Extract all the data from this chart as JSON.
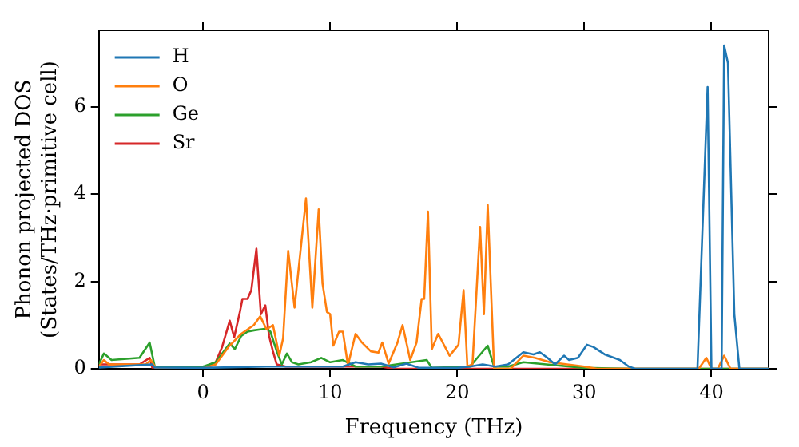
{
  "chart_data": {
    "type": "line",
    "xlabel": "Frequency (THz)",
    "ylabel": "Phonon projected DOS\n(States/THz·primitive cell)",
    "xlim": [
      -8.2,
      44.5
    ],
    "ylim": [
      0,
      7.75
    ],
    "xticks": [
      0,
      10,
      20,
      30,
      40
    ],
    "yticks": [
      0,
      2,
      4,
      6
    ],
    "grid": false,
    "legend": "top left",
    "marker": "none",
    "line_style": "solid",
    "series": [
      {
        "name": "H",
        "color": "#1f77b4",
        "x": [
          -8.2,
          -4,
          -3.8,
          0,
          5,
          8,
          11,
          12,
          13,
          14,
          15,
          16,
          17,
          20,
          21,
          22,
          23,
          24,
          25.2,
          26,
          26.5,
          27.1,
          27.7,
          28.4,
          28.8,
          29.5,
          30.2,
          30.7,
          31.6,
          32.8,
          33.5,
          34,
          38.9,
          39.7,
          40,
          40.4,
          40.8,
          41,
          41.3,
          41.8,
          42.2,
          44.5
        ],
        "values": [
          0.03,
          0.1,
          0.03,
          0.02,
          0.05,
          0.05,
          0.05,
          0.15,
          0.1,
          0.12,
          0.03,
          0.12,
          0.02,
          0.02,
          0.05,
          0.1,
          0.05,
          0.1,
          0.38,
          0.33,
          0.38,
          0.25,
          0.1,
          0.3,
          0.2,
          0.25,
          0.55,
          0.5,
          0.33,
          0.2,
          0.05,
          0,
          0,
          6.45,
          0,
          0,
          0,
          7.4,
          7.0,
          1.25,
          0,
          0
        ]
      },
      {
        "name": "O",
        "color": "#ff7f0e",
        "x": [
          -8.2,
          -7.8,
          -7.4,
          -4.5,
          -4.1,
          -3.7,
          0,
          1,
          2,
          3,
          4,
          4.5,
          5,
          5.5,
          6,
          6.3,
          6.7,
          7.2,
          8.1,
          8.6,
          9.1,
          9.4,
          9.75,
          10,
          10.25,
          10.7,
          11,
          11.4,
          12,
          12.5,
          13.2,
          13.8,
          14.1,
          14.6,
          15.3,
          15.7,
          16.3,
          16.8,
          17.2,
          17.4,
          17.7,
          18,
          18.5,
          19.4,
          20.1,
          20.5,
          20.8,
          21.2,
          21.8,
          22.1,
          22.4,
          22.9,
          24.2,
          25.2,
          26.1,
          27.3,
          30,
          31,
          39,
          39.6,
          40,
          40.5,
          41,
          41.5,
          44.5
        ],
        "values": [
          0.05,
          0.2,
          0.1,
          0.1,
          0.2,
          0,
          0,
          0.1,
          0.5,
          0.8,
          1.0,
          1.2,
          0.9,
          1.0,
          0.3,
          0.7,
          2.7,
          1.4,
          3.9,
          1.4,
          3.65,
          1.95,
          1.3,
          1.25,
          0.53,
          0.85,
          0.85,
          0.08,
          0.8,
          0.6,
          0.4,
          0.37,
          0.6,
          0.12,
          0.6,
          1.0,
          0.2,
          0.6,
          1.6,
          1.6,
          3.6,
          0.45,
          0.8,
          0.3,
          0.55,
          1.8,
          0.05,
          0.1,
          3.25,
          1.25,
          3.75,
          0,
          0,
          0.3,
          0.25,
          0.15,
          0.05,
          0,
          0,
          0.25,
          0,
          0,
          0.3,
          0,
          0
        ]
      },
      {
        "name": "Ge",
        "color": "#2ca02c",
        "x": [
          -8.2,
          -7.8,
          -7.2,
          -5,
          -4.2,
          -3.8,
          0,
          1,
          2.1,
          2.5,
          3,
          3.5,
          4,
          4.5,
          5,
          5.3,
          5.8,
          6.2,
          6.6,
          7,
          7.5,
          8.5,
          9.3,
          10,
          11,
          12,
          14,
          17.6,
          18,
          21,
          22.4,
          22.9,
          24,
          25.2,
          27,
          30,
          34,
          44.5
        ],
        "values": [
          0.1,
          0.35,
          0.2,
          0.25,
          0.6,
          0.05,
          0.05,
          0.15,
          0.58,
          0.45,
          0.75,
          0.85,
          0.88,
          0.9,
          0.92,
          0.85,
          0.4,
          0.1,
          0.35,
          0.15,
          0.1,
          0.15,
          0.25,
          0.15,
          0.2,
          0.05,
          0.05,
          0.2,
          0.02,
          0.05,
          0.53,
          0.05,
          0.05,
          0.15,
          0.1,
          0.02,
          0,
          0
        ]
      },
      {
        "name": "Sr",
        "color": "#d62728",
        "x": [
          -8.2,
          -5,
          -4.2,
          -4,
          0,
          1,
          1.5,
          2.1,
          2.45,
          2.9,
          3.1,
          3.5,
          3.8,
          4.2,
          4.55,
          4.9,
          5.2,
          5.5,
          5.8,
          6.5,
          14,
          15,
          44.5
        ],
        "values": [
          0.1,
          0.1,
          0.25,
          0.03,
          0.03,
          0.15,
          0.5,
          1.1,
          0.72,
          1.3,
          1.6,
          1.6,
          1.8,
          2.75,
          1.25,
          1.45,
          0.75,
          0.4,
          0.1,
          0.05,
          0.05,
          0,
          0
        ]
      }
    ]
  }
}
